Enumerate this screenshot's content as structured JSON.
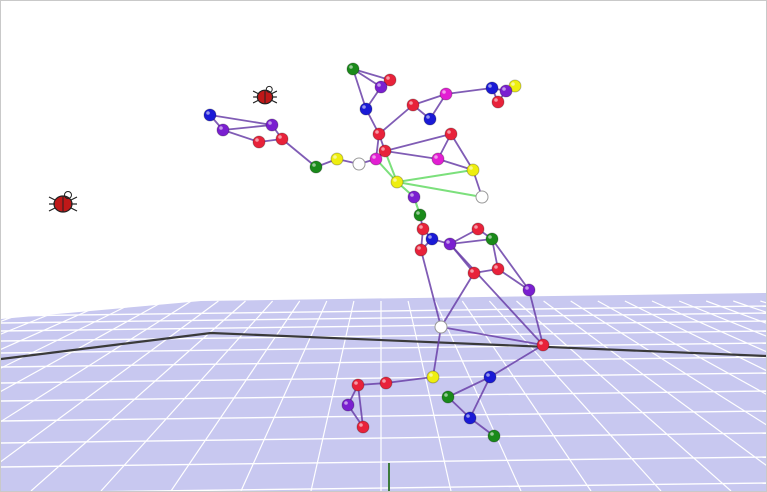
{
  "viewport": {
    "background": "#ffffff",
    "floor_color": "#c8c8f0",
    "grid_line_color": "#ffffff",
    "axis_color": "#3a3a3a"
  },
  "skeleton": {
    "bone_color": "#6a3fa8",
    "highlight_bone_color": "#7ce07c",
    "joint_colors": [
      "#e8223a",
      "#1a1ad6",
      "#7a1fd0",
      "#e21ed2",
      "#1a8a1a",
      "#eeee10",
      "#ffffff"
    ]
  },
  "markers": {
    "icon": "ladybug-marker-icon",
    "color": "#c01818"
  }
}
